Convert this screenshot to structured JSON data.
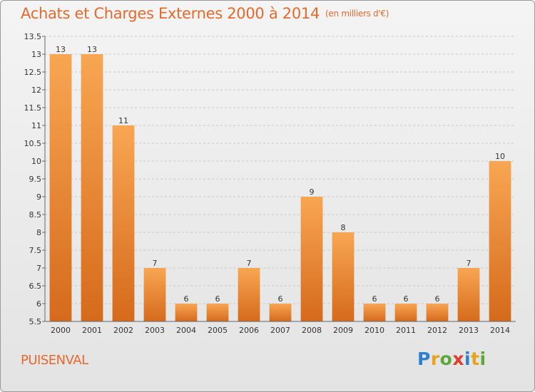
{
  "header": {
    "title": "Achats et Charges Externes 2000 à 2014",
    "unit": "(en milliers d'€)"
  },
  "footer": {
    "town": "PUISENVAL",
    "brand": "Proxiti",
    "brand_letters": [
      {
        "ch": "P",
        "color": "#2f7fd0"
      },
      {
        "ch": "r",
        "color": "#e8a21c"
      },
      {
        "ch": "o",
        "color": "#5aa83a"
      },
      {
        "ch": "x",
        "color": "#e03c2c"
      },
      {
        "ch": "i",
        "color": "#2f7fd0"
      },
      {
        "ch": "t",
        "color": "#e8a21c"
      },
      {
        "ch": "i",
        "color": "#5aa83a"
      }
    ]
  },
  "colors": {
    "accent": "#e36a2c",
    "bar_top": "#f8a653",
    "bar_bottom": "#d56a1c",
    "grid": "#c8c8c8",
    "axis": "#666666"
  },
  "chart_data": {
    "type": "bar",
    "categories": [
      "2000",
      "2001",
      "2002",
      "2003",
      "2004",
      "2005",
      "2006",
      "2007",
      "2008",
      "2009",
      "2010",
      "2011",
      "2012",
      "2013",
      "2014"
    ],
    "values": [
      13,
      13,
      11,
      7,
      6,
      6,
      7,
      6,
      9,
      8,
      6,
      6,
      6,
      7,
      10
    ],
    "data_labels": [
      "13",
      "13",
      "11",
      "7",
      "6",
      "6",
      "7",
      "6",
      "9",
      "8",
      "6",
      "6",
      "6",
      "7",
      "10"
    ],
    "ylim": [
      5.5,
      13.5
    ],
    "yticks": [
      5.5,
      6,
      6.5,
      7,
      7.5,
      8,
      8.5,
      9,
      9.5,
      10,
      10.5,
      11,
      11.5,
      12,
      12.5,
      13,
      13.5
    ],
    "ytick_labels": [
      "5.5",
      "6",
      "6.5",
      "7",
      "7.5",
      "8",
      "8.5",
      "9",
      "9.5",
      "10",
      "10.5",
      "11",
      "11.5",
      "12",
      "12.5",
      "13",
      "13.5"
    ],
    "grid": true,
    "legend": "none"
  }
}
